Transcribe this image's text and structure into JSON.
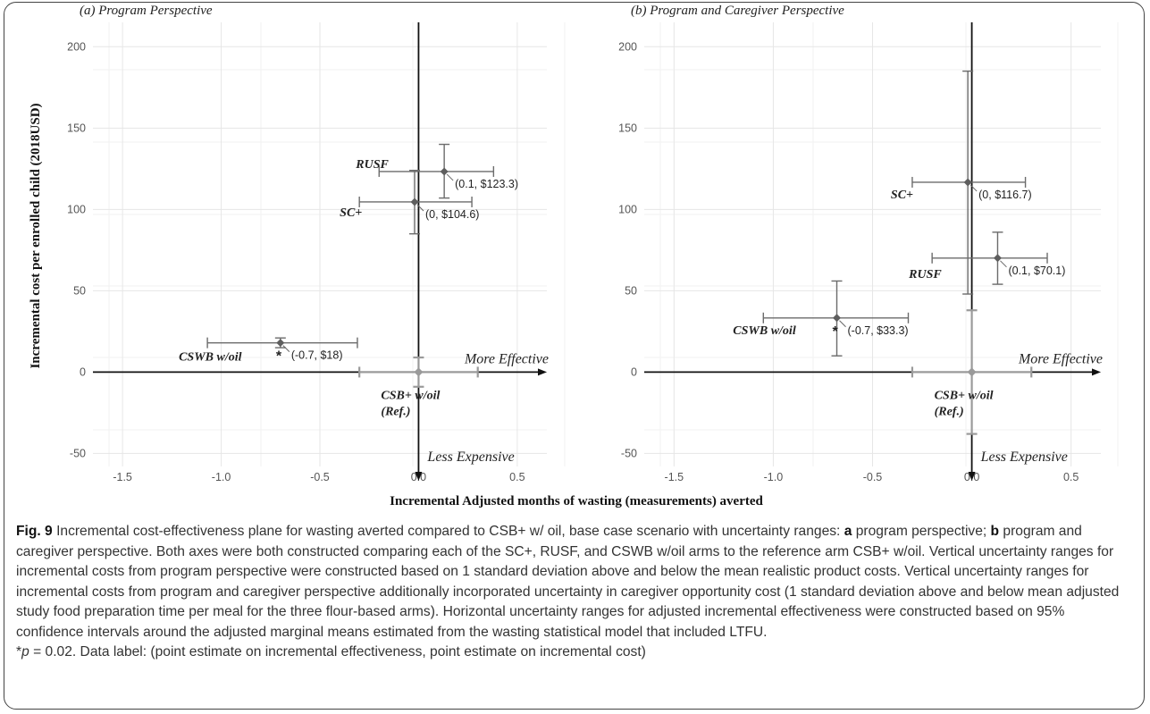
{
  "caption": {
    "fig_label": "Fig. 9",
    "seg1": " Incremental cost-effectiveness plane for wasting averted compared to CSB+ w/ oil, base case scenario with uncertainty ranges: ",
    "a": "a",
    "seg2": " program perspective; ",
    "b": "b",
    "seg3": " program and caregiver perspective. Both axes were both constructed comparing each of the SC+, RUSF, and CSWB w/oil arms to the reference arm CSB+ w/oil. Vertical uncertainty ranges for incremental costs from program perspective were constructed based on 1 standard deviation above and below the mean realistic product costs. Vertical uncertainty ranges for incremental costs from program and caregiver perspective additionally incorporated uncertainty in caregiver opportunity cost (1 standard deviation above and below mean adjusted study food preparation time per meal for the three flour-based arms). Horizontal uncertainty ranges for adjusted incremental effectiveness were constructed based on 95% confidence intervals around the adjusted marginal means estimated from the wasting statistical model that included LTFU.",
    "p_star": "*",
    "p_var": "p",
    "p_rest": " = 0.02. Data label: (point estimate on incremental effectiveness, point estimate on incremental cost)"
  },
  "chart_data": {
    "type": "scatter",
    "ylabel": "Incremental cost per enrolled child (2018USD)",
    "xlabel": "Incremental Adjusted months of wasting (measurements) averted",
    "x_axis_note": "More Effective",
    "y_axis_note": "Less Expensive",
    "significance_note": "*",
    "panels": [
      {
        "id": "a",
        "title": "(a) Program Perspective",
        "xlim": [
          -1.65,
          0.65
        ],
        "ylim": [
          -58,
          215
        ],
        "x_ticks": [
          -1.5,
          -1.0,
          -0.5,
          0.0,
          0.5
        ],
        "x_tick_labels": [
          "-1.5",
          "-1.0",
          "-0.5",
          "0.0",
          "0.5"
        ],
        "y_ticks": [
          -50,
          0,
          50,
          100,
          150,
          200
        ],
        "y_tick_labels": [
          "-50",
          "0",
          "50",
          "100",
          "150",
          "200"
        ],
        "grid": true,
        "points": [
          {
            "arm": "RUSF",
            "x": 0.13,
            "y": 123.3,
            "x_lo": -0.2,
            "x_hi": 0.38,
            "y_lo": 107,
            "y_hi": 140,
            "label": "(0.1, $123.3)",
            "arm_label": "RUSF",
            "significant": false
          },
          {
            "arm": "SC+",
            "x": -0.02,
            "y": 104.6,
            "x_lo": -0.3,
            "x_hi": 0.27,
            "y_lo": 85,
            "y_hi": 124,
            "label": "(0, $104.6)",
            "arm_label": "SC+",
            "significant": false
          },
          {
            "arm": "CSWB w/oil",
            "x": -0.7,
            "y": 18,
            "x_lo": -1.07,
            "x_hi": -0.31,
            "y_lo": 15,
            "y_hi": 21,
            "label": "(-0.7, $18)",
            "arm_label": "CSWB w/oil",
            "significant": true
          },
          {
            "arm": "CSB+ w/oil",
            "x": 0.0,
            "y": 0.0,
            "x_lo": -0.3,
            "x_hi": 0.3,
            "y_lo": -9,
            "y_hi": 9,
            "label": "",
            "arm_label": "CSB+ w/oil",
            "arm_label2": "(Ref.)",
            "significant": false,
            "reference": true
          }
        ]
      },
      {
        "id": "b",
        "title": "(b) Program and Caregiver Perspective",
        "xlim": [
          -1.65,
          0.65
        ],
        "ylim": [
          -58,
          215
        ],
        "x_ticks": [
          -1.5,
          -1.0,
          -0.5,
          0.0,
          0.5
        ],
        "x_tick_labels": [
          "-1.5",
          "-1.0",
          "-0.5",
          "0.0",
          "0.5"
        ],
        "y_ticks": [
          -50,
          0,
          50,
          100,
          150,
          200
        ],
        "y_tick_labels": [
          "-50",
          "0",
          "50",
          "100",
          "150",
          "200"
        ],
        "grid": true,
        "points": [
          {
            "arm": "SC+",
            "x": -0.02,
            "y": 116.7,
            "x_lo": -0.3,
            "x_hi": 0.27,
            "y_lo": 48,
            "y_hi": 185,
            "label": "(0, $116.7)",
            "arm_label": "SC+",
            "significant": false
          },
          {
            "arm": "RUSF",
            "x": 0.13,
            "y": 70.1,
            "x_lo": -0.2,
            "x_hi": 0.38,
            "y_lo": 54,
            "y_hi": 86,
            "label": "(0.1, $70.1)",
            "arm_label": "RUSF",
            "significant": false
          },
          {
            "arm": "CSWB w/oil",
            "x": -0.68,
            "y": 33.3,
            "x_lo": -1.05,
            "x_hi": -0.32,
            "y_lo": 10,
            "y_hi": 56,
            "label": "(-0.7, $33.3)",
            "arm_label": "CSWB w/oil",
            "significant": true
          },
          {
            "arm": "CSB+ w/oil",
            "x": 0.0,
            "y": 0.0,
            "x_lo": -0.3,
            "x_hi": 0.3,
            "y_lo": -38,
            "y_hi": 38,
            "label": "",
            "arm_label": "CSB+ w/oil",
            "arm_label2": "(Ref.)",
            "significant": false,
            "reference": true
          }
        ]
      }
    ]
  }
}
